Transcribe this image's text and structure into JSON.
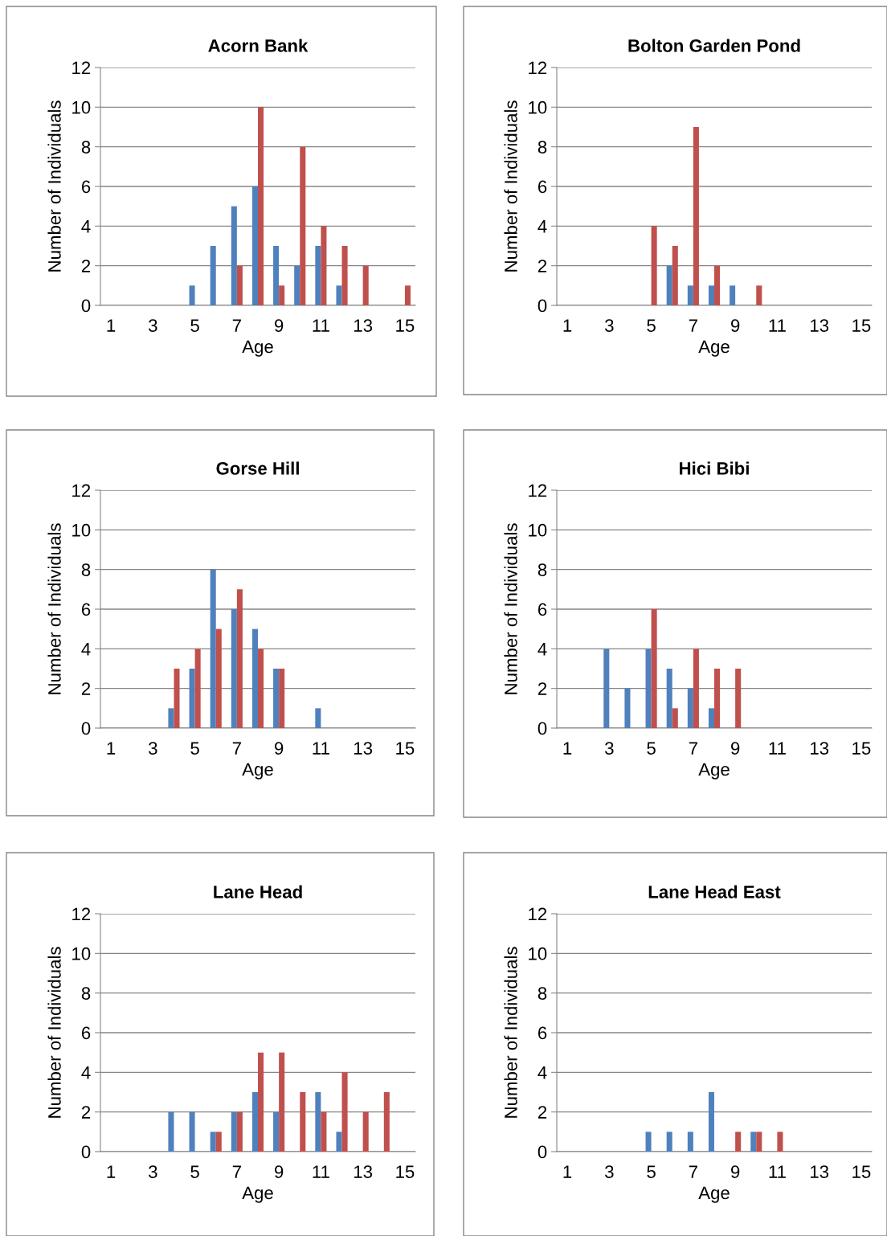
{
  "chart_data": [
    {
      "type": "bar",
      "title": "Acorn Bank",
      "xlabel": "Age",
      "ylabel": "Number of Individuals",
      "categories": [
        "1",
        null,
        "3",
        null,
        "5",
        null,
        "7",
        null,
        "9",
        null,
        "11",
        null,
        "13",
        null,
        "15"
      ],
      "ylim": [
        0,
        12
      ],
      "yticks": [
        0,
        2,
        4,
        6,
        8,
        10,
        12
      ],
      "grid": "y",
      "series": [
        {
          "color": "#4f81bd",
          "values": [
            0,
            0,
            0,
            0,
            1,
            3,
            5,
            6,
            3,
            2,
            3,
            1,
            0,
            0,
            0
          ]
        },
        {
          "color": "#c0504d",
          "values": [
            0,
            0,
            0,
            0,
            0,
            0,
            2,
            10,
            1,
            8,
            4,
            3,
            2,
            0,
            1
          ]
        }
      ]
    },
    {
      "type": "bar",
      "title": "Bolton Garden Pond",
      "xlabel": "Age",
      "ylabel": "Number of Individuals",
      "categories": [
        "1",
        null,
        "3",
        null,
        "5",
        null,
        "7",
        null,
        "9",
        null,
        "11",
        null,
        "13",
        null,
        "15"
      ],
      "ylim": [
        0,
        12
      ],
      "yticks": [
        0,
        2,
        4,
        6,
        8,
        10,
        12
      ],
      "grid": "y",
      "series": [
        {
          "color": "#4f81bd",
          "values": [
            0,
            0,
            0,
            0,
            0,
            2,
            1,
            1,
            1,
            0,
            0,
            0,
            0,
            0,
            0
          ]
        },
        {
          "color": "#c0504d",
          "values": [
            0,
            0,
            0,
            0,
            4,
            3,
            9,
            2,
            0,
            1,
            0,
            0,
            0,
            0,
            0
          ]
        }
      ]
    },
    {
      "type": "bar",
      "title": "Gorse Hill",
      "xlabel": "Age",
      "ylabel": "Number of Individuals",
      "categories": [
        "1",
        null,
        "3",
        null,
        "5",
        null,
        "7",
        null,
        "9",
        null,
        "11",
        null,
        "13",
        null,
        "15"
      ],
      "ylim": [
        0,
        12
      ],
      "yticks": [
        0,
        2,
        4,
        6,
        8,
        10,
        12
      ],
      "grid": "y",
      "series": [
        {
          "color": "#4f81bd",
          "values": [
            0,
            0,
            0,
            1,
            3,
            8,
            6,
            5,
            3,
            0,
            1,
            0,
            0,
            0,
            0
          ]
        },
        {
          "color": "#c0504d",
          "values": [
            0,
            0,
            0,
            3,
            4,
            5,
            7,
            4,
            3,
            0,
            0,
            0,
            0,
            0,
            0
          ]
        }
      ]
    },
    {
      "type": "bar",
      "title": "Hici Bibi",
      "xlabel": "Age",
      "ylabel": "Number of Individuals",
      "categories": [
        "1",
        null,
        "3",
        null,
        "5",
        null,
        "7",
        null,
        "9",
        null,
        "11",
        null,
        "13",
        null,
        "15"
      ],
      "ylim": [
        0,
        12
      ],
      "yticks": [
        0,
        2,
        4,
        6,
        8,
        10,
        12
      ],
      "grid": "y",
      "series": [
        {
          "color": "#4f81bd",
          "values": [
            0,
            0,
            4,
            2,
            4,
            3,
            2,
            1,
            0,
            0,
            0,
            0,
            0,
            0,
            0
          ]
        },
        {
          "color": "#c0504d",
          "values": [
            0,
            0,
            0,
            0,
            6,
            1,
            4,
            3,
            3,
            0,
            0,
            0,
            0,
            0,
            0
          ]
        }
      ]
    },
    {
      "type": "bar",
      "title": "Lane Head",
      "xlabel": "Age",
      "ylabel": "Number of Individuals",
      "categories": [
        "1",
        null,
        "3",
        null,
        "5",
        null,
        "7",
        null,
        "9",
        null,
        "11",
        null,
        "13",
        null,
        "15"
      ],
      "ylim": [
        0,
        12
      ],
      "yticks": [
        0,
        2,
        4,
        6,
        8,
        10,
        12
      ],
      "grid": "y",
      "series": [
        {
          "color": "#4f81bd",
          "values": [
            0,
            0,
            0,
            2,
            2,
            1,
            2,
            3,
            2,
            0,
            3,
            1,
            0,
            0,
            0
          ]
        },
        {
          "color": "#c0504d",
          "values": [
            0,
            0,
            0,
            0,
            0,
            1,
            2,
            5,
            5,
            3,
            2,
            4,
            2,
            3,
            0
          ]
        }
      ]
    },
    {
      "type": "bar",
      "title": "Lane Head East",
      "xlabel": "Age",
      "ylabel": "Number of Individuals",
      "categories": [
        "1",
        null,
        "3",
        null,
        "5",
        null,
        "7",
        null,
        "9",
        null,
        "11",
        null,
        "13",
        null,
        "15"
      ],
      "ylim": [
        0,
        12
      ],
      "yticks": [
        0,
        2,
        4,
        6,
        8,
        10,
        12
      ],
      "grid": "y",
      "series": [
        {
          "color": "#4f81bd",
          "values": [
            0,
            0,
            0,
            0,
            1,
            1,
            1,
            3,
            0,
            1,
            0,
            0,
            0,
            0,
            0
          ]
        },
        {
          "color": "#c0504d",
          "values": [
            0,
            0,
            0,
            0,
            0,
            0,
            0,
            0,
            1,
            1,
            1,
            0,
            0,
            0,
            0
          ]
        }
      ]
    }
  ]
}
